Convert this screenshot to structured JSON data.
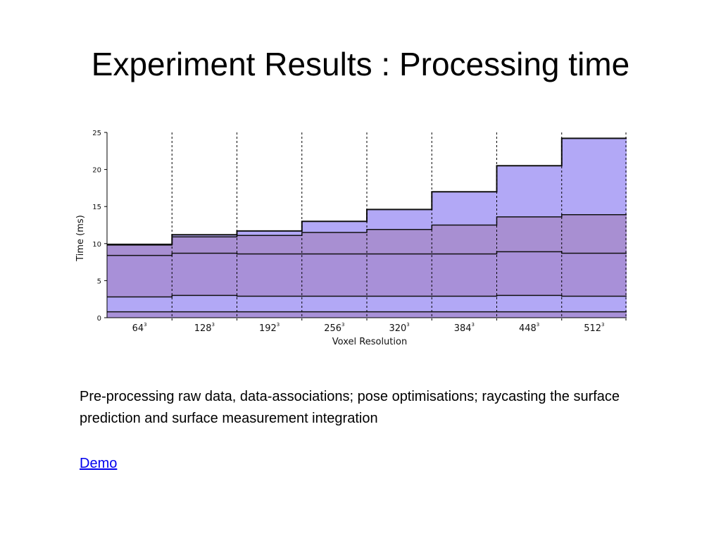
{
  "slide": {
    "title": "Experiment Results : Processing time",
    "description": "Pre-processing raw data, data-associations; pose optimisations; raycasting the surface prediction and surface measurement integration",
    "link_label": "Demo"
  },
  "chart_data": {
    "type": "area",
    "stacked": true,
    "title": "",
    "xlabel": "Voxel Resolution",
    "ylabel": "Time (ms)",
    "ylim": [
      0,
      25
    ],
    "yticks": [
      0,
      5,
      10,
      15,
      20,
      25
    ],
    "categories": [
      "64",
      "128",
      "192",
      "256",
      "320",
      "384",
      "448",
      "512"
    ],
    "category_superscript": "3",
    "grid": "dashed vertical separators between categories",
    "layer_colors": [
      "#a890d8",
      "#b2a8f6",
      "#a890d8",
      "#a88fd2",
      "#b2a8f6"
    ],
    "series": [
      {
        "values": [
          0.8,
          0.8,
          0.8,
          0.8,
          0.8,
          0.8,
          0.8,
          0.8
        ]
      },
      {
        "values": [
          2.0,
          2.2,
          2.1,
          2.1,
          2.1,
          2.1,
          2.2,
          2.1
        ]
      },
      {
        "values": [
          5.6,
          5.7,
          5.7,
          5.7,
          5.7,
          5.7,
          5.9,
          5.8
        ]
      },
      {
        "values": [
          1.4,
          2.2,
          2.5,
          2.9,
          3.3,
          3.9,
          4.7,
          5.2
        ]
      },
      {
        "values": [
          0.1,
          0.3,
          0.6,
          1.5,
          2.7,
          4.5,
          6.9,
          10.3
        ]
      }
    ]
  }
}
